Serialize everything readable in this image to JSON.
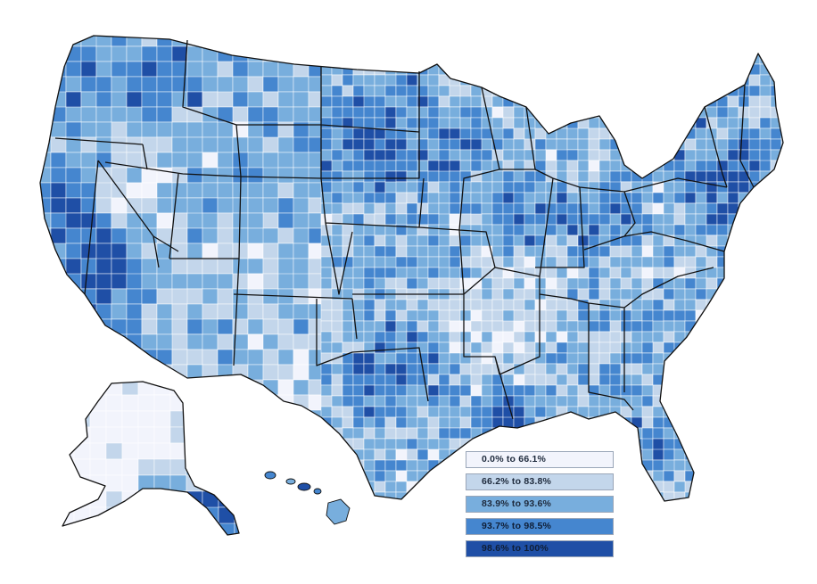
{
  "legend": {
    "items": [
      {
        "label": "0.0% to 66.1%",
        "color": "#f2f4fc",
        "range_min": 0.0,
        "range_max": 66.1
      },
      {
        "label": "66.2% to 83.8%",
        "color": "#c3d6eb",
        "range_min": 66.2,
        "range_max": 83.8
      },
      {
        "label": "83.9% to 93.6%",
        "color": "#78aedd",
        "range_min": 83.9,
        "range_max": 93.6
      },
      {
        "label": "93.7% to 98.5%",
        "color": "#4586cf",
        "range_min": 93.7,
        "range_max": 98.5
      },
      {
        "label": "98.6% to 100%",
        "color": "#1f4fa6",
        "range_min": 98.6,
        "range_max": 100
      }
    ]
  },
  "map": {
    "region": "United States counties",
    "insets": [
      "Alaska",
      "Hawaii"
    ],
    "border_color": "#111111",
    "county_border_color": "#ffffff"
  }
}
